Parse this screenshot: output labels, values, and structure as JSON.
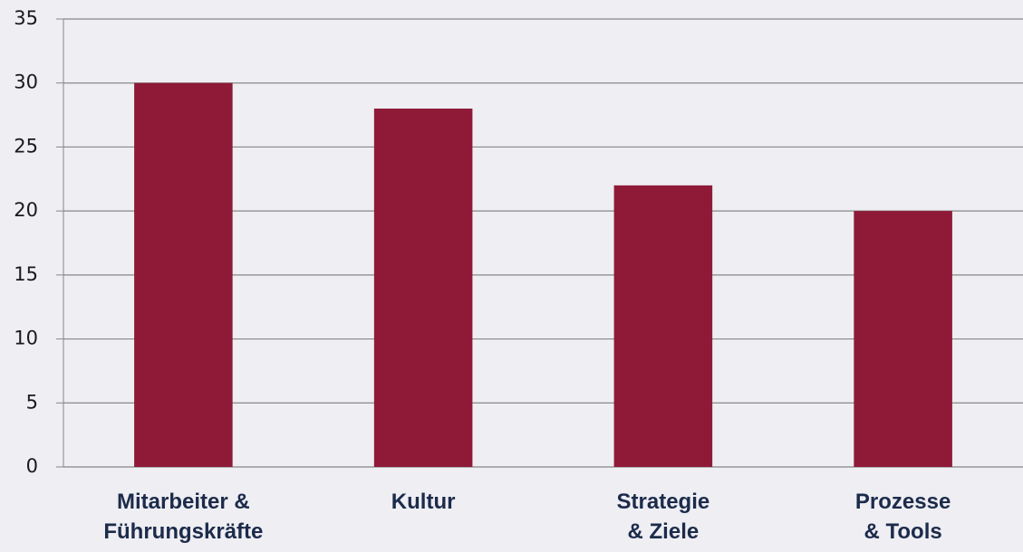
{
  "chart_data": {
    "type": "bar",
    "categories": [
      "Mitarbeiter &\nFührungskräfte",
      "Kultur",
      "Strategie\n& Ziele",
      "Prozesse\n& Tools"
    ],
    "values": [
      30,
      28,
      22,
      20
    ],
    "color": "#8e1a38",
    "ylim": [
      0,
      35
    ],
    "yticks": [
      0,
      5,
      10,
      15,
      20,
      25,
      30,
      35
    ],
    "grid": true
  }
}
